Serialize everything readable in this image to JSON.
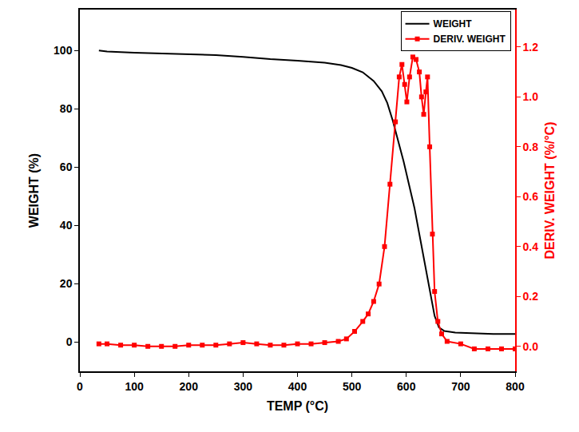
{
  "chart_data": {
    "type": "line",
    "x_label": "TEMP (°C)",
    "y_label": "WEIGHT (%)",
    "y2_label": "DERIV. WEIGHT (%/°C)",
    "xlim": [
      0,
      800
    ],
    "xticks": [
      0,
      100,
      200,
      300,
      400,
      500,
      600,
      700,
      800
    ],
    "ylim": [
      -10,
      114
    ],
    "yticks": [
      0,
      20,
      40,
      60,
      80,
      100
    ],
    "y2lim": [
      -0.1,
      1.35
    ],
    "y2ticks": [
      {
        "value": 0,
        "label": "0.0"
      },
      {
        "value": 0.2,
        "label": "0.2"
      },
      {
        "value": 0.4,
        "label": "0.4"
      },
      {
        "value": 0.6,
        "label": "0.6"
      },
      {
        "value": 0.8,
        "label": "0.8"
      },
      {
        "value": 1.0,
        "label": "1.0"
      },
      {
        "value": 1.2,
        "label": "1.2"
      }
    ],
    "legend": "upper right",
    "series": [
      {
        "name": "WEIGHT",
        "color": "#000000",
        "line_style": "solid",
        "x": [
          35,
          50,
          100,
          150,
          200,
          250,
          300,
          350,
          400,
          450,
          480,
          500,
          520,
          540,
          555,
          565,
          575,
          585,
          595,
          605,
          615,
          625,
          635,
          645,
          652,
          660,
          670,
          690,
          720,
          760,
          800
        ],
        "values": [
          100,
          99.6,
          99.2,
          99,
          98.8,
          98.4,
          97.8,
          97,
          96.5,
          95.8,
          95,
          94,
          92.5,
          89.5,
          86,
          82,
          76,
          69,
          62,
          54,
          46,
          36,
          26,
          16,
          9,
          5,
          3.8,
          3.3,
          3,
          2.8,
          2.8
        ]
      },
      {
        "name": "DERIV. WEIGHT",
        "color": "#ff0000",
        "axis": "y2",
        "marker": "square",
        "line_style": "solid",
        "x": [
          35,
          50,
          75,
          100,
          125,
          150,
          175,
          200,
          225,
          250,
          275,
          300,
          325,
          350,
          375,
          400,
          425,
          450,
          475,
          490,
          505,
          520,
          530,
          540,
          550,
          560,
          570,
          580,
          587,
          592,
          597,
          601,
          606,
          612,
          618,
          624,
          628,
          632,
          636,
          639,
          643,
          648,
          652,
          658,
          665,
          675,
          700,
          725,
          750,
          775,
          800
        ],
        "values": [
          0.01,
          0.01,
          0.005,
          0.005,
          0,
          0,
          0,
          0.005,
          0.005,
          0.005,
          0.01,
          0.015,
          0.01,
          0.005,
          0.005,
          0.01,
          0.01,
          0.015,
          0.02,
          0.03,
          0.06,
          0.1,
          0.13,
          0.18,
          0.25,
          0.4,
          0.65,
          0.9,
          1.08,
          1.13,
          1.05,
          0.98,
          1.08,
          1.16,
          1.15,
          1.1,
          1.0,
          0.93,
          1.02,
          1.08,
          0.8,
          0.45,
          0.22,
          0.1,
          0.05,
          0.02,
          0.01,
          -0.01,
          -0.01,
          -0.01,
          -0.01
        ]
      }
    ]
  }
}
